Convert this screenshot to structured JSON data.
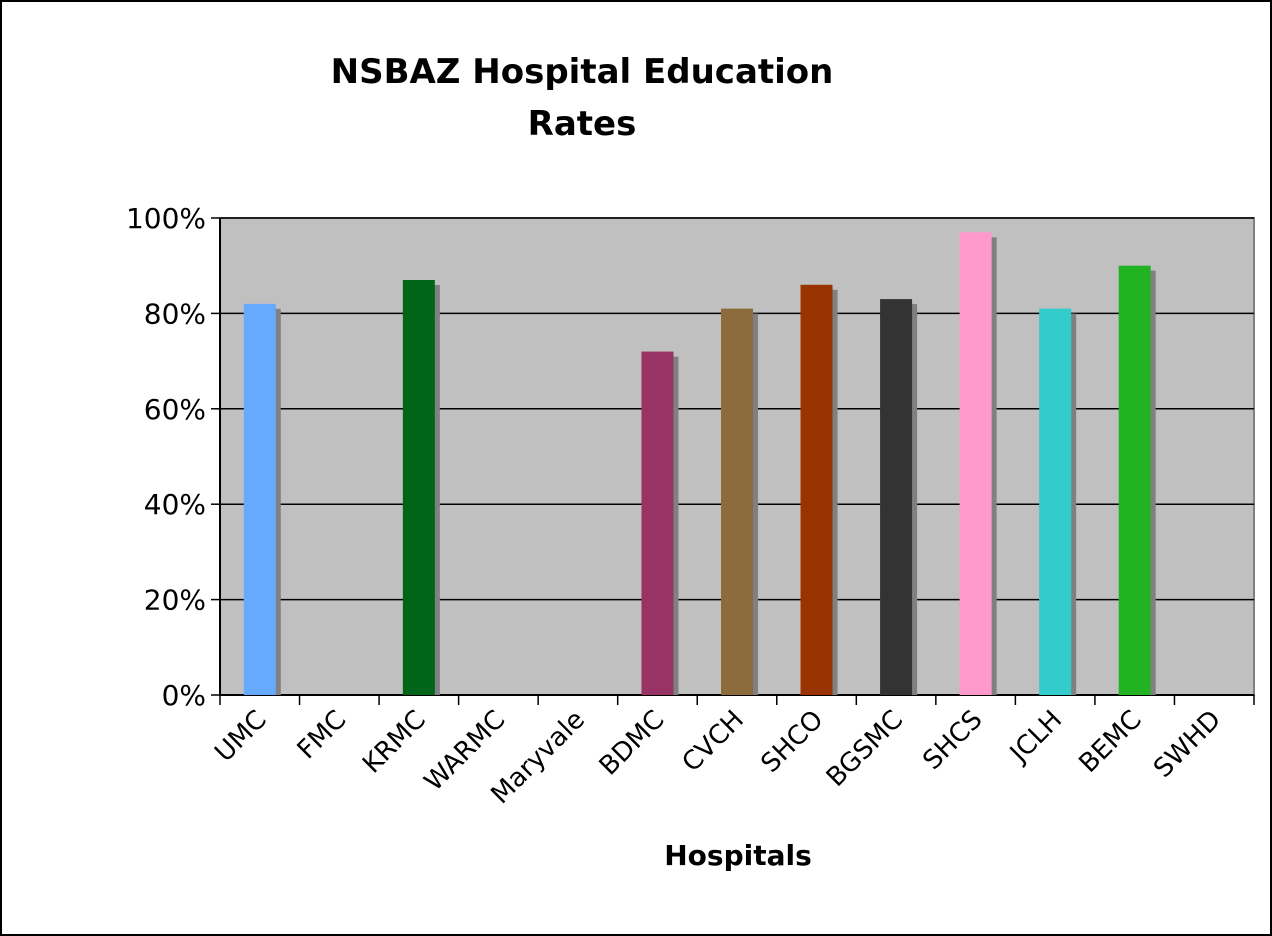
{
  "chart_data": {
    "type": "bar",
    "title_lines": [
      "NSBAZ Hospital Education",
      "Rates"
    ],
    "xlabel": "Hospitals",
    "ylabel": "",
    "ylim": [
      0,
      100
    ],
    "ytick_values": [
      0,
      20,
      40,
      60,
      80,
      100
    ],
    "ytick_labels": [
      "0%",
      "20%",
      "40%",
      "60%",
      "80%",
      "100%"
    ],
    "grid": true,
    "plot_background": "#c0c0c0",
    "shadow_color": "#808080",
    "categories": [
      "UMC",
      "FMC",
      "KRMC",
      "WARMC",
      "Maryvale",
      "BDMC",
      "CVCH",
      "SHCO",
      "BGSMC",
      "SHCS",
      "JCLH",
      "BEMC",
      "SWHD"
    ],
    "values": [
      82,
      null,
      87,
      null,
      null,
      72,
      81,
      86,
      83,
      97,
      81,
      90,
      null
    ],
    "colors": [
      "#66aaff",
      "#000000",
      "#006419",
      "#000000",
      "#000000",
      "#993366",
      "#8c6b3c",
      "#993300",
      "#333333",
      "#ff99cc",
      "#33cccc",
      "#22b322",
      "#000000"
    ]
  }
}
